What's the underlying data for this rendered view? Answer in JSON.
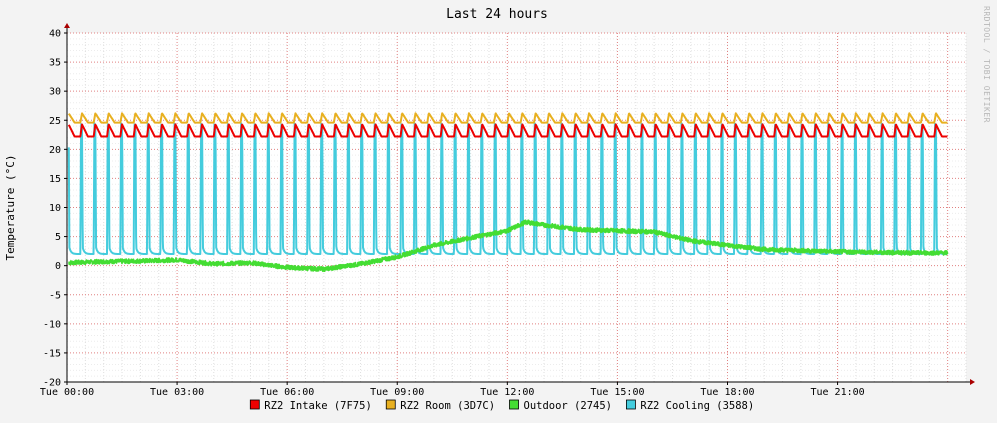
{
  "chart_data": {
    "type": "line",
    "title": "Last 24 hours",
    "ylabel": "Temperature (°C)",
    "xlabel": "",
    "watermark": "RRDTOOL / TOBI OETIKER",
    "ylim": [
      -20,
      40
    ],
    "yticks": [
      40,
      35,
      30,
      25,
      20,
      15,
      10,
      5,
      0,
      -5,
      -10,
      -15,
      -20
    ],
    "x_range_hours": [
      0,
      24.5
    ],
    "xticks": [
      {
        "hour": 0,
        "label": "Tue 00:00"
      },
      {
        "hour": 3,
        "label": "Tue 03:00"
      },
      {
        "hour": 6,
        "label": "Tue 06:00"
      },
      {
        "hour": 9,
        "label": "Tue 09:00"
      },
      {
        "hour": 12,
        "label": "Tue 12:00"
      },
      {
        "hour": 15,
        "label": "Tue 15:00"
      },
      {
        "hour": 18,
        "label": "Tue 18:00"
      },
      {
        "hour": 21,
        "label": "Tue 21:00"
      }
    ],
    "grid": true,
    "legend_position": "bottom",
    "series": [
      {
        "name": "RZ2 Intake (7F75)",
        "color": "#ee0000",
        "pattern": "sawtooth",
        "cycles_per_hour": 2.75,
        "baseline": 22.2,
        "peak": 24.3,
        "t_start": 0.05,
        "t_end": 24.0
      },
      {
        "name": "RZ2 Room (3D7C)",
        "color": "#e8b020",
        "pattern": "sawtooth",
        "cycles_per_hour": 2.75,
        "baseline": 24.6,
        "peak": 26.2,
        "t_start": 0.05,
        "t_end": 24.0
      },
      {
        "name": "Outdoor (2745)",
        "color": "#44dd33",
        "pattern": "profile",
        "t_start": 0.05,
        "t_end": 24.0,
        "x": [
          0,
          1,
          2,
          3,
          4,
          5,
          6,
          7,
          8,
          9,
          9.5,
          10,
          11,
          12,
          12.5,
          13,
          14,
          15,
          16,
          17,
          18,
          19,
          20,
          21,
          22,
          23,
          24
        ],
        "y": [
          0.5,
          0.7,
          0.8,
          1.0,
          0.3,
          0.5,
          -0.3,
          -0.6,
          0.3,
          1.5,
          2.5,
          3.5,
          4.8,
          6.0,
          7.5,
          7.0,
          6.2,
          6.0,
          5.8,
          4.3,
          3.5,
          2.8,
          2.6,
          2.4,
          2.3,
          2.2,
          2.2
        ]
      },
      {
        "name": "RZ2 Cooling (3588)",
        "color": "#44ccdd",
        "pattern": "spikes",
        "cycles_per_hour": 2.75,
        "baseline": 2.0,
        "peak": 24.5,
        "t_start": 0.05,
        "t_end": 24.0
      }
    ]
  }
}
